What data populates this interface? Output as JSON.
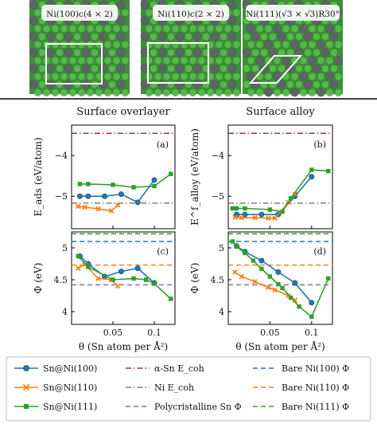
{
  "surfaces": [
    {
      "label": "Ni(100)c(4 × 2)"
    },
    {
      "label": "Ni(110)c(2 × 2)"
    },
    {
      "label": "Ni(111)(√3 × √3)R30°"
    }
  ],
  "chart_data": [
    {
      "type": "line",
      "title": "Surface overlayer",
      "panel_label": "(a)",
      "xlabel": "",
      "ylabel": "E_ads (eV/atom)",
      "xlim": [
        0,
        0.125
      ],
      "ylim": [
        -5.8,
        -3.25
      ],
      "yticks": [
        -4,
        -5
      ],
      "xticks": [
        0.05,
        0.1
      ],
      "series": [
        {
          "name": "Sn@Ni(100)",
          "x": [
            0.01,
            0.02,
            0.04,
            0.06,
            0.08,
            0.1
          ],
          "y": [
            -5.0,
            -5.0,
            -5.0,
            -4.95,
            -5.15,
            -4.6
          ]
        },
        {
          "name": "Sn@Ni(110)",
          "x": [
            0.008,
            0.016,
            0.032,
            0.048,
            0.056
          ],
          "y": [
            -5.25,
            -5.27,
            -5.31,
            -5.36,
            -5.22
          ]
        },
        {
          "name": "Sn@Ni(111)",
          "x": [
            0.01,
            0.02,
            0.05,
            0.075,
            0.1,
            0.12
          ],
          "y": [
            -4.7,
            -4.7,
            -4.72,
            -4.78,
            -4.75,
            -4.45
          ]
        }
      ],
      "hlines": [
        {
          "name": "α-Sn E_coh",
          "y": -3.45
        },
        {
          "name": "Ni E_coh",
          "y": -5.17
        }
      ]
    },
    {
      "type": "line",
      "title": "Surface alloy",
      "panel_label": "(b)",
      "xlabel": "",
      "ylabel": "E^f_alloy (eV/atom)",
      "xlim": [
        0,
        0.125
      ],
      "ylim": [
        -5.8,
        -3.25
      ],
      "yticks": [
        -4,
        -5
      ],
      "xticks": [
        0.05,
        0.1
      ],
      "series": [
        {
          "name": "Sn@Ni(100)",
          "x": [
            0.01,
            0.02,
            0.04,
            0.06,
            0.08,
            0.1
          ],
          "y": [
            -5.45,
            -5.45,
            -5.45,
            -5.45,
            -5.0,
            -4.52
          ]
        },
        {
          "name": "Sn@Ni(110)",
          "x": [
            0.008,
            0.016,
            0.032,
            0.048,
            0.056,
            0.072,
            0.08
          ],
          "y": [
            -5.52,
            -5.53,
            -5.53,
            -5.54,
            -5.54,
            -5.15,
            -4.95
          ]
        },
        {
          "name": "Sn@Ni(111)",
          "x": [
            0.005,
            0.01,
            0.02,
            0.05,
            0.065,
            0.075,
            0.1,
            0.12
          ],
          "y": [
            -5.3,
            -5.3,
            -5.3,
            -5.33,
            -5.38,
            -5.05,
            -4.35,
            -4.38
          ]
        }
      ],
      "hlines": [
        {
          "name": "α-Sn E_coh",
          "y": -3.45
        },
        {
          "name": "Ni E_coh",
          "y": -5.17
        }
      ]
    },
    {
      "type": "line",
      "title": "",
      "panel_label": "(c)",
      "xlabel": "θ (Sn atom per Å²)",
      "ylabel": "Φ (eV)",
      "xlim": [
        0,
        0.125
      ],
      "ylim": [
        3.8,
        5.25
      ],
      "yticks": [
        4.0,
        4.5,
        5.0
      ],
      "xticks": [
        0.05,
        0.1
      ],
      "series": [
        {
          "name": "Sn@Ni(100)",
          "x": [
            0.01,
            0.02,
            0.04,
            0.06,
            0.08,
            0.1
          ],
          "y": [
            4.87,
            4.75,
            4.55,
            4.63,
            4.68,
            4.45
          ]
        },
        {
          "name": "Sn@Ni(110)",
          "x": [
            0.008,
            0.016,
            0.032,
            0.048,
            0.056
          ],
          "y": [
            4.68,
            4.74,
            4.52,
            4.5,
            4.4
          ]
        },
        {
          "name": "Sn@Ni(111)",
          "x": [
            0.008,
            0.02,
            0.05,
            0.075,
            0.09,
            0.1,
            0.12
          ],
          "y": [
            4.87,
            4.7,
            4.5,
            4.52,
            4.5,
            4.44,
            4.2
          ]
        }
      ],
      "hlines": [
        {
          "name": "Bare Ni(100) Φ",
          "y": 5.1
        },
        {
          "name": "Bare Ni(110) Φ",
          "y": 4.73
        },
        {
          "name": "Bare Ni(111) Φ",
          "y": 5.22
        },
        {
          "name": "Polycristalline Sn Φ",
          "y": 4.42
        }
      ]
    },
    {
      "type": "line",
      "title": "",
      "panel_label": "(d)",
      "xlabel": "θ (Sn atom per Å²)",
      "ylabel": "Φ (eV)",
      "xlim": [
        0,
        0.125
      ],
      "ylim": [
        3.8,
        5.25
      ],
      "yticks": [
        4.0,
        4.5,
        5.0
      ],
      "xticks": [
        0.05,
        0.1
      ],
      "series": [
        {
          "name": "Sn@Ni(100)",
          "x": [
            0.01,
            0.02,
            0.04,
            0.06,
            0.08,
            0.1
          ],
          "y": [
            5.03,
            4.94,
            4.8,
            4.62,
            4.45,
            4.14
          ]
        },
        {
          "name": "Sn@Ni(110)",
          "x": [
            0.008,
            0.016,
            0.032,
            0.048,
            0.056,
            0.072,
            0.08
          ],
          "y": [
            4.62,
            4.55,
            4.47,
            4.38,
            4.34,
            4.25,
            4.18
          ]
        },
        {
          "name": "Sn@Ni(111)",
          "x": [
            0.005,
            0.01,
            0.02,
            0.03,
            0.04,
            0.05,
            0.06,
            0.065,
            0.075,
            0.085,
            0.1,
            0.12
          ],
          "y": [
            5.1,
            5.02,
            4.92,
            4.8,
            4.67,
            4.55,
            4.43,
            4.37,
            4.22,
            4.08,
            3.92,
            4.52
          ]
        }
      ],
      "hlines": [
        {
          "name": "Bare Ni(100) Φ",
          "y": 5.1
        },
        {
          "name": "Bare Ni(110) Φ",
          "y": 4.73
        },
        {
          "name": "Bare Ni(111) Φ",
          "y": 5.22
        },
        {
          "name": "Polycristalline Sn Φ",
          "y": 4.42
        }
      ]
    }
  ],
  "legend": [
    {
      "name": "Sn@Ni(100)",
      "kind": "marker",
      "marker": "circle",
      "color": "#1f77b4"
    },
    {
      "name": "Sn@Ni(110)",
      "kind": "marker",
      "marker": "x",
      "color": "#ff7f0e"
    },
    {
      "name": "Sn@Ni(111)",
      "kind": "marker",
      "marker": "square",
      "color": "#2ca02c"
    },
    {
      "name": "α-Sn E_coh",
      "kind": "line",
      "style": "dashdot",
      "color": "#8c3b3b"
    },
    {
      "name": "Ni E_coh",
      "kind": "line",
      "style": "dashdot",
      "color": "#7f7f7f"
    },
    {
      "name": "Polycristalline Sn Φ",
      "kind": "line",
      "style": "dashed",
      "color": "#9467bd"
    },
    {
      "name": "Bare Ni(100) Φ",
      "kind": "line",
      "style": "dashed",
      "color": "#1f77b4"
    },
    {
      "name": "Bare Ni(110) Φ",
      "kind": "line",
      "style": "dashed",
      "color": "#ff7f0e"
    },
    {
      "name": "Bare Ni(111) Φ",
      "kind": "line",
      "style": "dashed",
      "color": "#2ca02c"
    }
  ],
  "colors": {
    "series": [
      "#1f77b4",
      "#ff7f0e",
      "#2ca02c"
    ],
    "alpha_sn": "#8c3b3b",
    "ni_coh": "#7f7f7f",
    "poly_sn": "#9467bd",
    "ni_atom": "#55b94a",
    "sn_atom": "#5f6368"
  }
}
